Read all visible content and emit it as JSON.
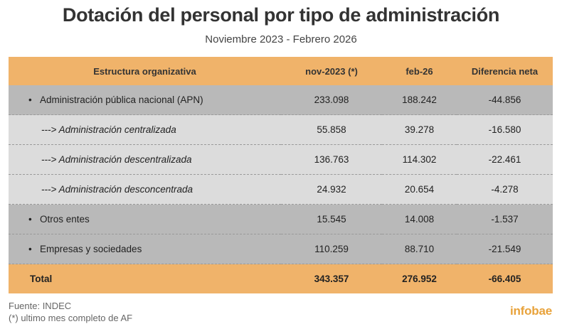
{
  "header": {
    "title": "Dotación del personal por tipo de administración",
    "subtitle": "Noviembre 2023 - Febrero 2026"
  },
  "chart_data": {
    "type": "table",
    "title": "Dotación del personal por tipo de administración",
    "subtitle": "Noviembre 2023 - Febrero 2026",
    "columns": [
      "Estructura organizativa",
      "nov-2023 (*)",
      "feb-26",
      "Diferencia neta"
    ],
    "rows": [
      {
        "label": "Administración pública nacional (APN)",
        "bullet": "•",
        "level": 0,
        "values": [
          "233.098",
          "188.242",
          "-44.856"
        ]
      },
      {
        "label": "---> Administración centralizada",
        "bullet": "",
        "level": 1,
        "values": [
          "55.858",
          "39.278",
          "-16.580"
        ]
      },
      {
        "label": "---> Administración descentralizada",
        "bullet": "",
        "level": 1,
        "values": [
          "136.763",
          "114.302",
          "-22.461"
        ]
      },
      {
        "label": "---> Administración desconcentrada",
        "bullet": "",
        "level": 1,
        "values": [
          "24.932",
          "20.654",
          "-4.278"
        ]
      },
      {
        "label": "Otros entes",
        "bullet": "•",
        "level": 0,
        "values": [
          "15.545",
          "14.008",
          "-1.537"
        ]
      },
      {
        "label": "Empresas y sociedades",
        "bullet": "•",
        "level": 0,
        "values": [
          "110.259",
          "88.710",
          "-21.549"
        ]
      }
    ],
    "total": {
      "label": "Total",
      "values": [
        "343.357",
        "276.952",
        "-66.405"
      ]
    }
  },
  "footer": {
    "source": "Fuente: INDEC",
    "note": "(*) ultimo mes completo de AF",
    "logo": "infobae"
  },
  "colors": {
    "header_bg": "#f0b36a",
    "row_dark": "#b9b9b9",
    "row_light": "#dcdcdc",
    "logo": "#e8a23a"
  }
}
